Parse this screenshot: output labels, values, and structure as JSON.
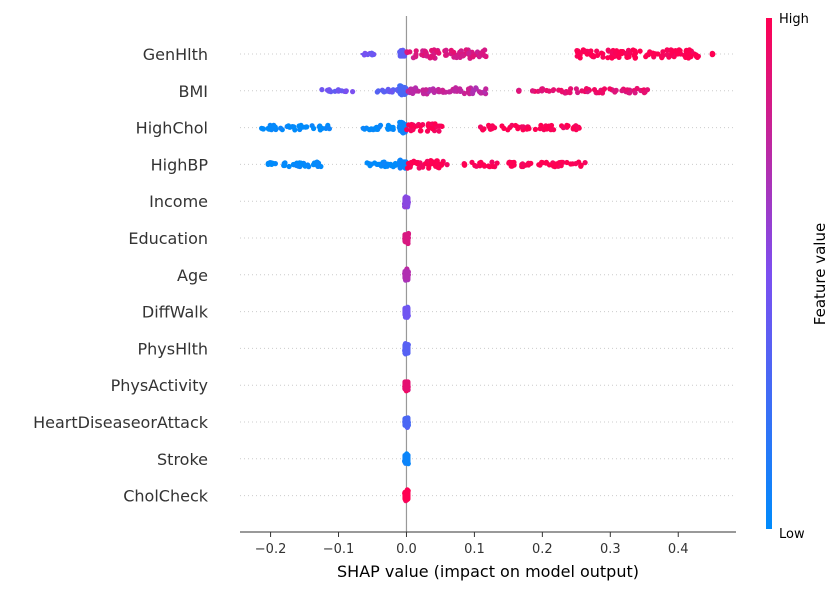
{
  "chart_data": {
    "type": "scatter",
    "subtype": "shap-beeswarm",
    "xlabel": "SHAP value (impact on model output)",
    "xlim": [
      -0.245,
      0.485
    ],
    "x_ticks": [
      -0.2,
      -0.1,
      0.0,
      0.1,
      0.2,
      0.3,
      0.4
    ],
    "x_tick_labels": [
      "−0.2",
      "−0.1",
      "0.0",
      "0.1",
      "0.2",
      "0.3",
      "0.4"
    ],
    "colorbar": {
      "title": "Feature value",
      "high_label": "High",
      "low_label": "Low",
      "low_color": "#008bfb",
      "mid_color": "#7c4ff0",
      "high_color": "#ff0052"
    },
    "grid": false,
    "features": [
      {
        "name": "GenHlth",
        "clusters": [
          {
            "x": [
              -0.065,
              -0.048
            ],
            "c": 0.45,
            "w": 0.15
          },
          {
            "x": [
              -0.01,
              -0.002
            ],
            "c": 0.38,
            "w": 0.6
          },
          {
            "x": [
              0.0,
              0.118
            ],
            "c": 0.85,
            "w": 0.55
          },
          {
            "x": [
              0.25,
              0.43
            ],
            "c": 1.0,
            "w": 0.55
          },
          {
            "x": [
              0.45,
              0.45
            ],
            "c": 1.0,
            "w": 0.1
          }
        ]
      },
      {
        "name": "BMI",
        "clusters": [
          {
            "x": [
              -0.125,
              -0.075
            ],
            "c": 0.45,
            "w": 0.15
          },
          {
            "x": [
              -0.045,
              -0.01
            ],
            "c": 0.4,
            "w": 0.2
          },
          {
            "x": [
              -0.01,
              0.0
            ],
            "c": 0.3,
            "w": 0.65
          },
          {
            "x": [
              0.0,
              0.12
            ],
            "c": 0.75,
            "w": 0.4
          },
          {
            "x": [
              0.165,
              0.165
            ],
            "c": 0.85,
            "w": 0.1
          },
          {
            "x": [
              0.185,
              0.36
            ],
            "c": 0.9,
            "w": 0.3
          }
        ]
      },
      {
        "name": "HighChol",
        "clusters": [
          {
            "x": [
              -0.215,
              -0.11
            ],
            "c": 0.0,
            "w": 0.3
          },
          {
            "x": [
              -0.065,
              -0.01
            ],
            "c": 0.0,
            "w": 0.3
          },
          {
            "x": [
              -0.01,
              0.0
            ],
            "c": 0.05,
            "w": 0.7
          },
          {
            "x": [
              0.0,
              0.055
            ],
            "c": 1.0,
            "w": 0.5
          },
          {
            "x": [
              0.105,
              0.255
            ],
            "c": 1.0,
            "w": 0.3
          }
        ]
      },
      {
        "name": "HighBP",
        "clusters": [
          {
            "x": [
              -0.205,
              -0.12
            ],
            "c": 0.0,
            "w": 0.3
          },
          {
            "x": [
              -0.06,
              -0.01
            ],
            "c": 0.0,
            "w": 0.3
          },
          {
            "x": [
              -0.01,
              0.0
            ],
            "c": 0.05,
            "w": 0.65
          },
          {
            "x": [
              0.0,
              0.06
            ],
            "c": 1.0,
            "w": 0.5
          },
          {
            "x": [
              0.085,
              0.085
            ],
            "c": 1.0,
            "w": 0.1
          },
          {
            "x": [
              0.095,
              0.265
            ],
            "c": 1.0,
            "w": 0.3
          }
        ]
      },
      {
        "name": "Income",
        "clusters": [
          {
            "x": [
              -0.003,
              0.003
            ],
            "c": 0.55,
            "w": 0.75
          }
        ]
      },
      {
        "name": "Education",
        "clusters": [
          {
            "x": [
              -0.003,
              0.003
            ],
            "c": 0.85,
            "w": 0.75
          }
        ]
      },
      {
        "name": "Age",
        "clusters": [
          {
            "x": [
              -0.003,
              0.003
            ],
            "c": 0.7,
            "w": 0.75
          }
        ]
      },
      {
        "name": "DiffWalk",
        "clusters": [
          {
            "x": [
              -0.003,
              0.003
            ],
            "c": 0.45,
            "w": 0.75
          }
        ]
      },
      {
        "name": "PhysHlth",
        "clusters": [
          {
            "x": [
              -0.003,
              0.003
            ],
            "c": 0.35,
            "w": 0.75
          }
        ]
      },
      {
        "name": "PhysActivity",
        "clusters": [
          {
            "x": [
              -0.003,
              0.003
            ],
            "c": 0.9,
            "w": 0.75
          }
        ]
      },
      {
        "name": "HeartDiseaseorAttack",
        "clusters": [
          {
            "x": [
              -0.003,
              0.003
            ],
            "c": 0.3,
            "w": 0.75
          }
        ]
      },
      {
        "name": "Stroke",
        "clusters": [
          {
            "x": [
              -0.003,
              0.003
            ],
            "c": 0.05,
            "w": 0.75
          }
        ]
      },
      {
        "name": "CholCheck",
        "clusters": [
          {
            "x": [
              -0.003,
              0.003
            ],
            "c": 1.0,
            "w": 0.75
          }
        ]
      }
    ]
  }
}
